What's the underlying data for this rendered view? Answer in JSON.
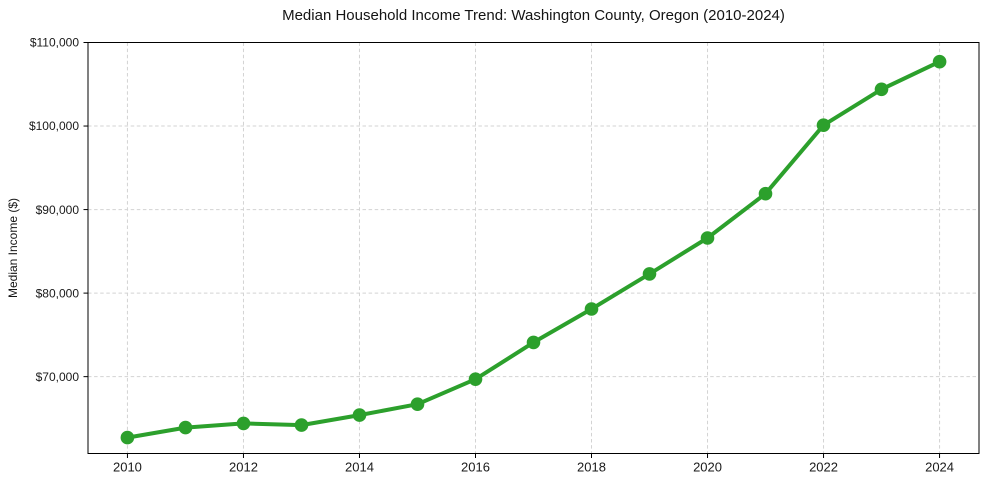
{
  "page": {
    "background": "#ffffff"
  },
  "chart_data": {
    "type": "line",
    "title": "Median Household Income Trend: Washington County, Oregon (2010-2024)",
    "xlabel": "",
    "ylabel": "Median Income ($)",
    "x": [
      2010,
      2011,
      2012,
      2013,
      2014,
      2015,
      2016,
      2017,
      2018,
      2019,
      2020,
      2021,
      2022,
      2023,
      2024
    ],
    "series": [
      {
        "name": "Median household income",
        "values": [
          62700,
          63900,
          64400,
          64200,
          65400,
          66700,
          69700,
          74100,
          78100,
          82300,
          86600,
          91900,
          100100,
          104400,
          107700
        ],
        "color": "#2ca02c",
        "marker": "circle",
        "line_width": 4,
        "marker_radius": 6.8
      }
    ],
    "x_ticks": {
      "values": [
        2010,
        2012,
        2014,
        2016,
        2018,
        2020,
        2022,
        2024
      ],
      "labels": [
        "2010",
        "2012",
        "2014",
        "2016",
        "2018",
        "2020",
        "2022",
        "2024"
      ]
    },
    "y_ticks": {
      "values": [
        70000,
        80000,
        90000,
        100000,
        110000
      ],
      "labels": [
        "$70,000",
        "$80,000",
        "$90,000",
        "$100,000",
        "$110,000"
      ]
    },
    "xlim": [
      2009.32,
      2024.68
    ],
    "ylim": [
      60800,
      110000
    ],
    "grid": true,
    "grid_style": "dashed",
    "grid_color": "#d3d3d3",
    "axis_color": "#000000",
    "text_color": "#1a1a1a",
    "legend": "none"
  }
}
